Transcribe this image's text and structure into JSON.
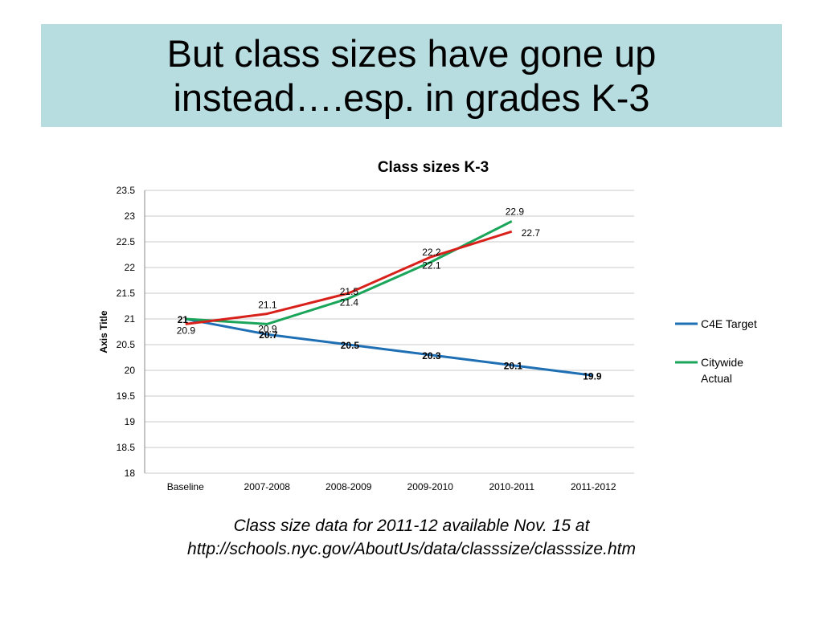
{
  "slide": {
    "title": "But class sizes have gone up\ninstead….esp. in  grades K-3",
    "caption_line1": "Class size data for 2011-12 available Nov. 15 at",
    "caption_line2": "http://schools.nyc.gov/AboutUs/data/classsize/classsize.htm"
  },
  "colors": {
    "title_band": "#b7dde1",
    "c4e_target": "#1f6fb4",
    "citywide_actual": "#1aa55a",
    "third_series": "#d9211c",
    "gridline": "#c8c8c8"
  },
  "chart_data": {
    "type": "line",
    "title": "Class sizes K-3",
    "ylabel": "Axis Title",
    "xlabel": "",
    "ylim": [
      18,
      23.5
    ],
    "yticks": [
      "18",
      "18.5",
      "19",
      "19.5",
      "20",
      "20.5",
      "21",
      "21.5",
      "22",
      "22.5",
      "23",
      "23.5"
    ],
    "categories": [
      "Baseline",
      "2007-2008",
      "2008-2009",
      "2009-2010",
      "2010-2011",
      "2011-2012"
    ],
    "grid": true,
    "legend_position": "right",
    "series": [
      {
        "name": "C4E Target",
        "color_key": "c4e_target",
        "values": [
          21,
          20.7,
          20.5,
          20.3,
          20.1,
          19.9
        ],
        "labels": [
          "21",
          "20.7",
          "20.5",
          "20.3",
          "20.1",
          "19.9"
        ],
        "label_bold": true,
        "in_legend": true
      },
      {
        "name": "Citywide Actual",
        "color_key": "citywide_actual",
        "values": [
          21,
          20.9,
          21.4,
          22.1,
          22.9,
          null
        ],
        "labels": [
          "",
          "20.9",
          "21.4",
          "22.1",
          "22.9",
          ""
        ],
        "label_bold": false,
        "in_legend": true
      },
      {
        "color_key": "third_series",
        "values": [
          20.9,
          21.1,
          21.5,
          22.2,
          22.7,
          null
        ],
        "labels": [
          "20.9",
          "21.1",
          "21.5",
          "22.2",
          "22.7",
          ""
        ],
        "label_bold": false,
        "in_legend": false
      }
    ],
    "legend_entries": [
      {
        "lines": [
          "C4E Target"
        ],
        "color_key": "c4e_target"
      },
      {
        "lines": [
          "Citywide",
          "Actual"
        ],
        "color_key": "citywide_actual"
      }
    ]
  }
}
